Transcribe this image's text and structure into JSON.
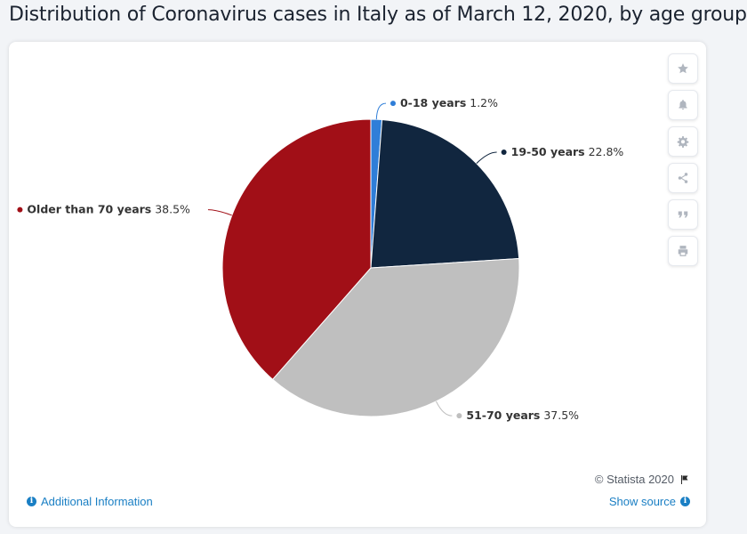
{
  "title": "Distribution of Coronavirus cases in Italy as of March 12, 2020, by age group",
  "chart_data": {
    "type": "pie",
    "title": "Distribution of Coronavirus cases in Italy as of March 12, 2020, by age group",
    "value_suffix": "%",
    "slices": [
      {
        "label": "0-18 years",
        "value": 1.2,
        "color": "#2f7ed8"
      },
      {
        "label": "19-50 years",
        "value": 22.8,
        "color": "#11263f"
      },
      {
        "label": "51-70 years",
        "value": 37.5,
        "color": "#bfbfbf"
      },
      {
        "label": "Older than 70 years",
        "value": 38.5,
        "color": "#a10f17"
      }
    ]
  },
  "toolbar": {
    "buttons": [
      {
        "icon": "star-icon"
      },
      {
        "icon": "bell-icon"
      },
      {
        "icon": "gear-icon"
      },
      {
        "icon": "share-icon"
      },
      {
        "icon": "quote-icon"
      },
      {
        "icon": "print-icon"
      }
    ]
  },
  "footer": {
    "copyright": "© Statista 2020",
    "additional_info": "Additional Information",
    "show_source": "Show source"
  },
  "colors": {
    "link": "#1a7fc4"
  }
}
